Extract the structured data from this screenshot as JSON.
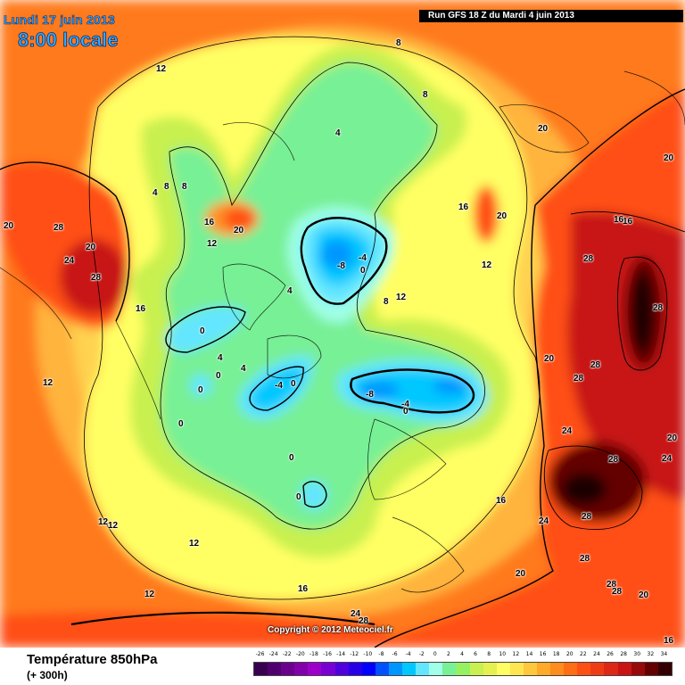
{
  "header": {
    "date_label": "Lundi 17 juin 2013",
    "time_label": "8:00 locale",
    "run_label": "Run GFS 18 Z du Mardi 4 juin 2013"
  },
  "copyright": "Copyright © 2012 Meteociel.fr",
  "footer": {
    "title": "Température 850hPa",
    "subtitle": "(+ 300h)"
  },
  "legend": {
    "values": [
      "-26",
      "-24",
      "-22",
      "-20",
      "-18",
      "-16",
      "-14",
      "-12",
      "-10",
      "-8",
      "-6",
      "-4",
      "-2",
      "0",
      "2",
      "4",
      "6",
      "8",
      "10",
      "12",
      "14",
      "16",
      "18",
      "20",
      "22",
      "24",
      "26",
      "28",
      "30",
      "32",
      "34"
    ],
    "colors": [
      "#3a0050",
      "#50006e",
      "#6a008c",
      "#8200aa",
      "#9c00c8",
      "#7800d2",
      "#5000dc",
      "#2800e6",
      "#0000ff",
      "#0050ff",
      "#0096ff",
      "#00c8ff",
      "#64e6ff",
      "#a0ffe6",
      "#78f096",
      "#96f064",
      "#c8f050",
      "#e6f050",
      "#ffff64",
      "#ffe650",
      "#ffc83c",
      "#ffaa28",
      "#ff8c1e",
      "#ff6e14",
      "#ff5014",
      "#f03c14",
      "#dc2814",
      "#c81414",
      "#960a0a",
      "#640000",
      "#320000"
    ]
  },
  "map": {
    "colors": {
      "sea": "#ff7a1e",
      "warm_orange": "#ff9428",
      "light_orange": "#ffb43c",
      "yellow_orange": "#ffd250",
      "yellow": "#ffff64",
      "light_yellow": "#ffff96",
      "yellow_green": "#c8f050",
      "green": "#78f096",
      "aqua": "#a0ffe6",
      "cyan": "#64e6ff",
      "blue": "#00c8ff",
      "deep_blue": "#0096ff",
      "red": "#ff5014",
      "dark_red": "#c81414",
      "maroon": "#640000",
      "black": "#1a0000"
    },
    "labels": [
      {
        "text": "12"
      },
      {
        "text": "8"
      },
      {
        "text": "8"
      },
      {
        "text": "4"
      },
      {
        "text": "4"
      },
      {
        "text": "8"
      },
      {
        "text": "8"
      },
      {
        "text": "16"
      },
      {
        "text": "20"
      },
      {
        "text": "12"
      },
      {
        "text": "16"
      },
      {
        "text": "20"
      },
      {
        "text": "12"
      },
      {
        "text": "20"
      },
      {
        "text": "16"
      },
      {
        "text": "20"
      },
      {
        "text": "20"
      },
      {
        "text": "28"
      },
      {
        "text": "20"
      },
      {
        "text": "24"
      },
      {
        "text": "28"
      },
      {
        "text": "16"
      },
      {
        "text": "12"
      },
      {
        "text": "-8"
      },
      {
        "text": "-4"
      },
      {
        "text": "0"
      },
      {
        "text": "8"
      },
      {
        "text": "12"
      },
      {
        "text": "4"
      },
      {
        "text": "0"
      },
      {
        "text": "4"
      },
      {
        "text": "0"
      },
      {
        "text": "0"
      },
      {
        "text": "-4"
      },
      {
        "text": "0"
      },
      {
        "text": "0"
      },
      {
        "text": "0"
      },
      {
        "text": "0"
      },
      {
        "text": "4"
      },
      {
        "text": "-8"
      },
      {
        "text": "-4"
      },
      {
        "text": "0"
      },
      {
        "text": "28"
      },
      {
        "text": "28"
      },
      {
        "text": "20"
      },
      {
        "text": "28"
      },
      {
        "text": "28"
      },
      {
        "text": "24"
      },
      {
        "text": "28"
      },
      {
        "text": "20"
      },
      {
        "text": "24"
      },
      {
        "text": "28"
      },
      {
        "text": "24"
      },
      {
        "text": "28"
      },
      {
        "text": "16"
      },
      {
        "text": "20"
      },
      {
        "text": "28"
      },
      {
        "text": "28"
      },
      {
        "text": "20"
      },
      {
        "text": "24"
      },
      {
        "text": "28"
      },
      {
        "text": "16"
      },
      {
        "text": "16"
      },
      {
        "text": "12"
      },
      {
        "text": "12"
      },
      {
        "text": "12"
      },
      {
        "text": "12"
      },
      {
        "text": "16"
      }
    ]
  }
}
